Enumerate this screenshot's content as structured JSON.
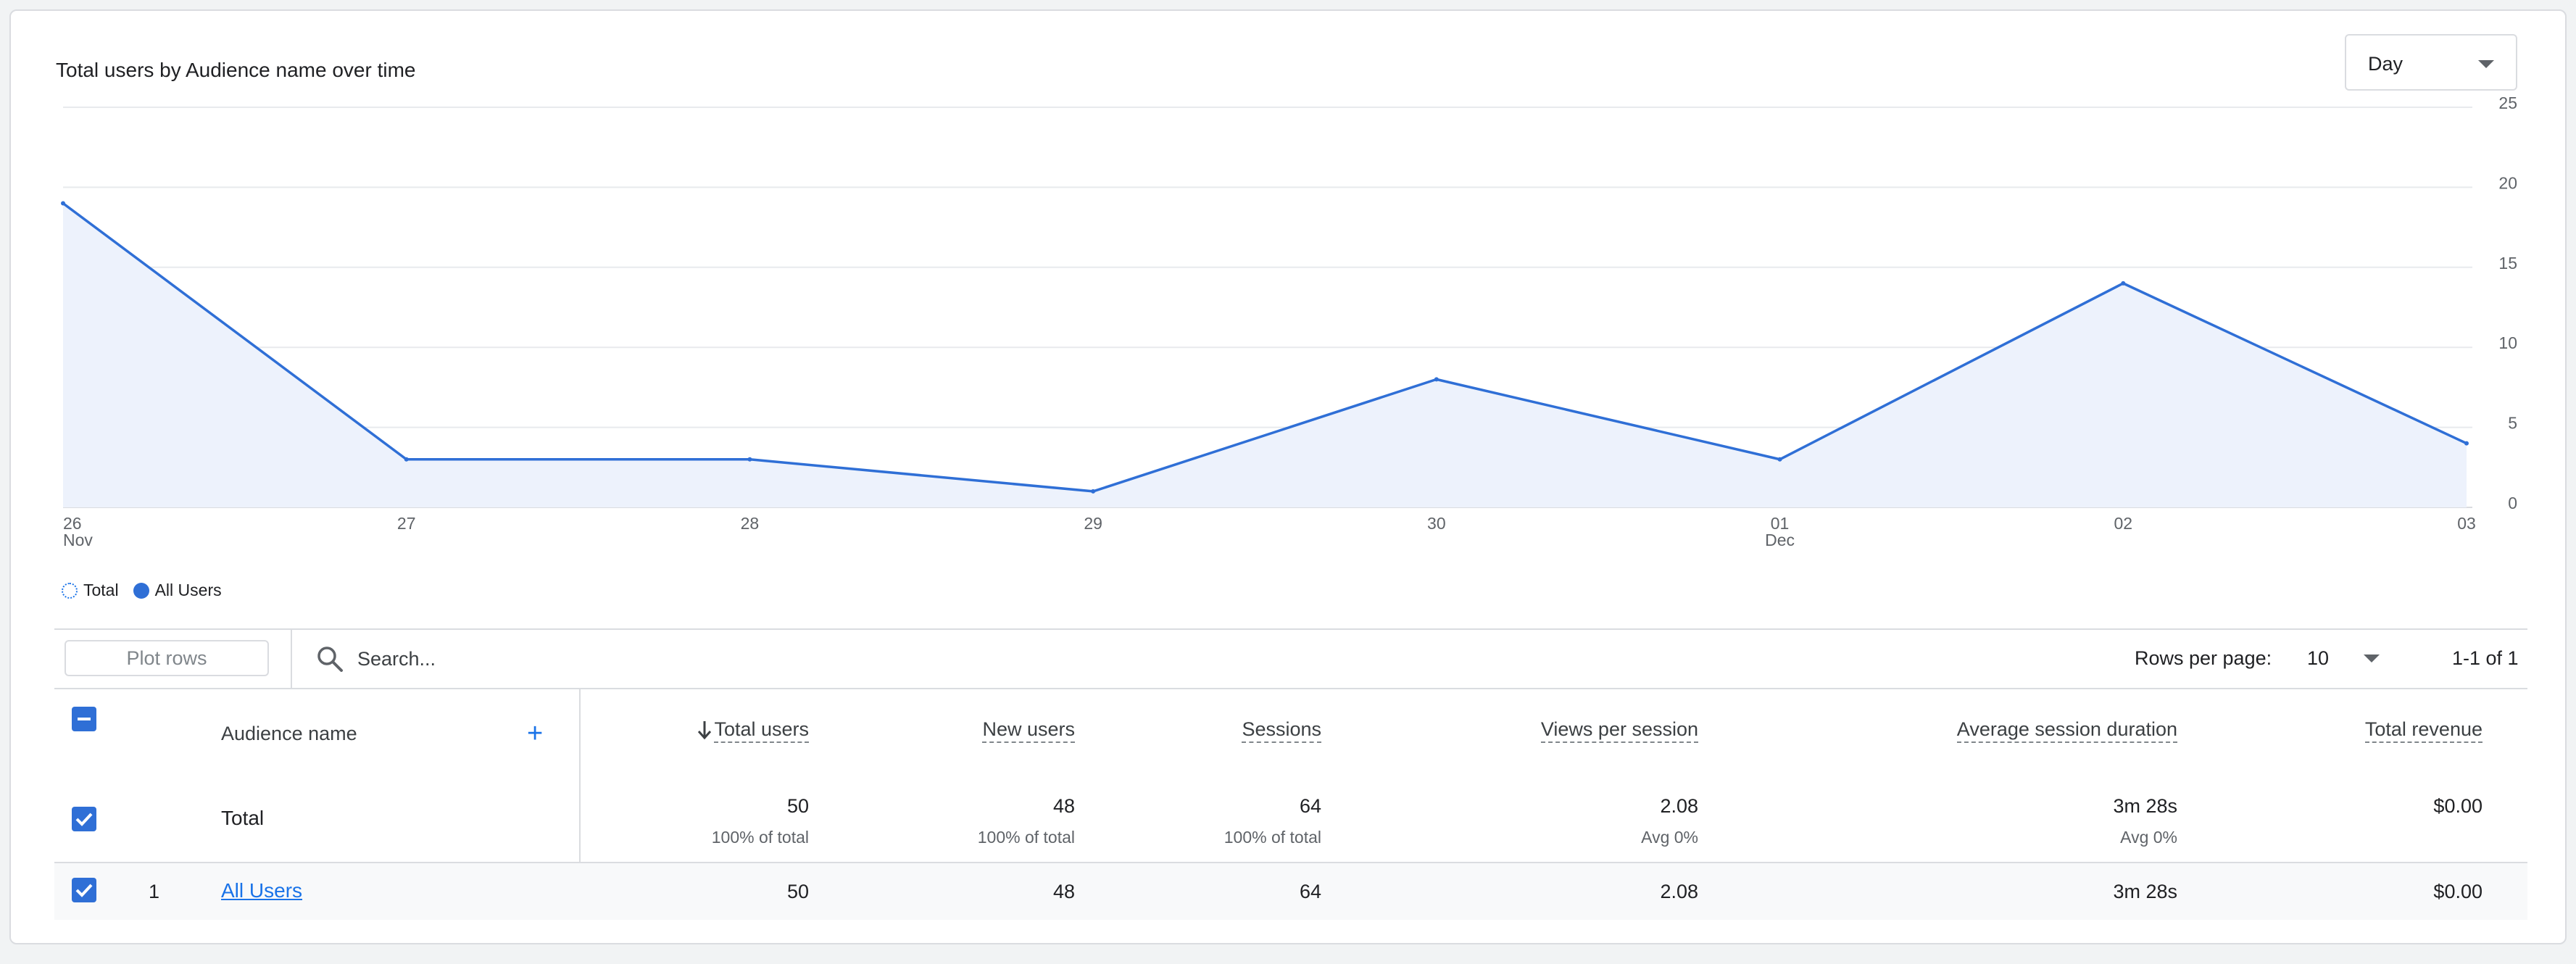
{
  "chart_title": "Total users by Audience name over time",
  "period_select": {
    "value": "Day",
    "icon": "chevron-down-icon"
  },
  "chart_data": {
    "type": "area",
    "categories": [
      "26 Nov",
      "27",
      "28",
      "29",
      "30",
      "01 Dec",
      "02",
      "03"
    ],
    "x_tick_labels": [
      [
        "26",
        "Nov"
      ],
      [
        "27",
        ""
      ],
      [
        "28",
        ""
      ],
      [
        "29",
        ""
      ],
      [
        "30",
        ""
      ],
      [
        "01",
        "Dec"
      ],
      [
        "02",
        ""
      ],
      [
        "03",
        ""
      ]
    ],
    "series": [
      {
        "name": "All Users",
        "values": [
          19,
          3,
          3,
          1,
          8,
          3,
          14,
          4
        ]
      }
    ],
    "y_ticks": [
      0,
      5,
      10,
      15,
      20,
      25
    ],
    "ylim": [
      0,
      25
    ],
    "grid": true,
    "y_axis_side": "right",
    "line_color": "#2f6fd6",
    "fill_color": "#edf2fc"
  },
  "legend": {
    "items": [
      "Total",
      "All Users"
    ]
  },
  "toolbar": {
    "plot_rows_label": "Plot rows",
    "search_placeholder": "Search...",
    "rows_per_page_label": "Rows per page:",
    "rows_per_page_value": "10",
    "pagination": "1-1 of 1"
  },
  "table": {
    "dimension_header": "Audience name",
    "sort_icon": "arrow-down-icon",
    "metric_headers": [
      "Total users",
      "New users",
      "Sessions",
      "Views per session",
      "Average session duration",
      "Total revenue"
    ],
    "total_row": {
      "label": "Total",
      "values": [
        "50",
        "48",
        "64",
        "2.08",
        "3m 28s",
        "$0.00"
      ],
      "subs": [
        "100% of total",
        "100% of total",
        "100% of total",
        "Avg 0%",
        "Avg 0%",
        ""
      ]
    },
    "rows": [
      {
        "index": "1",
        "name": "All Users",
        "values": [
          "50",
          "48",
          "64",
          "2.08",
          "3m 28s",
          "$0.00"
        ]
      }
    ]
  }
}
